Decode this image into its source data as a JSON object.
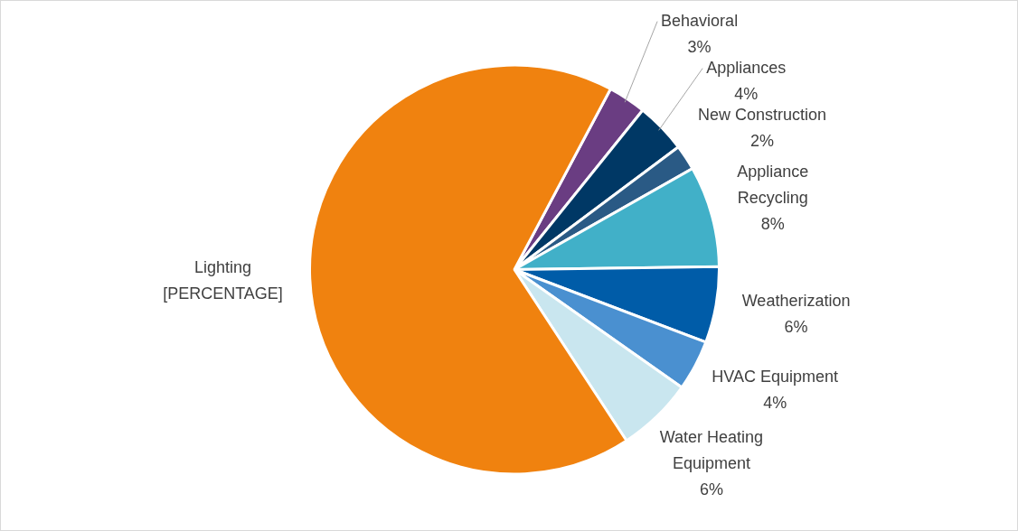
{
  "chart_data": {
    "type": "pie",
    "categories": [
      "Behavioral",
      "Appliances",
      "New Construction",
      "Appliance Recycling",
      "Weatherization",
      "HVAC Equipment",
      "Water Heating Equipment",
      "Lighting"
    ],
    "values": [
      3,
      4,
      2,
      8,
      6,
      4,
      6,
      67
    ],
    "value_labels": [
      "3%",
      "4%",
      "2%",
      "8%",
      "6%",
      "4%",
      "6%",
      "[PERCENTAGE]"
    ],
    "colors": [
      "#6a3d82",
      "#003865",
      "#2a5a85",
      "#41b0c8",
      "#005ca8",
      "#4a90d0",
      "#c9e6ef",
      "#f0820f"
    ],
    "legend": false
  }
}
